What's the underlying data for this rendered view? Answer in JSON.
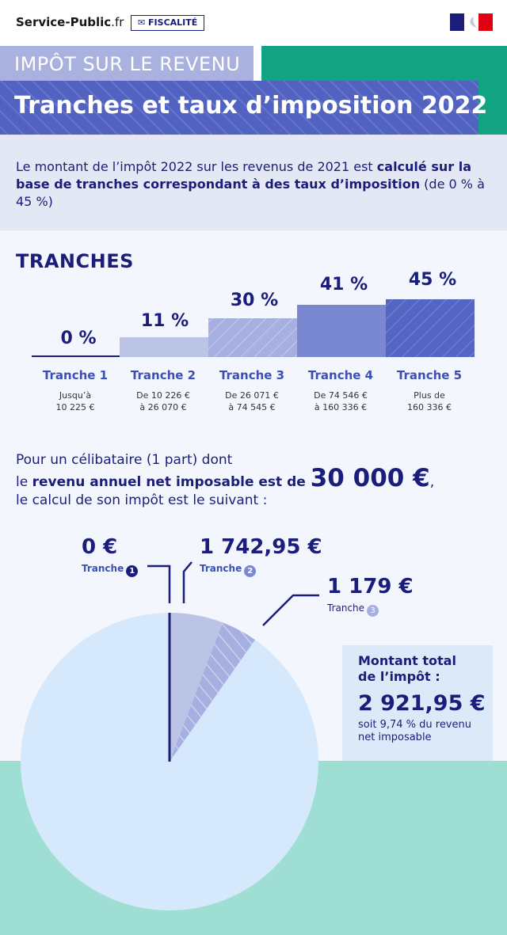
{
  "header": {
    "brand_main": "Service-Public",
    "brand_suffix": ".fr",
    "tag": "✉ FISCALITÉ",
    "kicker": "IMPÔT SUR LE REVENU",
    "title": "Tranches et taux d’imposition 2022"
  },
  "intro": {
    "part1": "Le montant de l’impôt 2022 sur les revenus de 2021 est ",
    "part_strong": "calculé sur la base de tranches correspondant à des taux d’imposition",
    "part2": " (de 0 % à 45 %)"
  },
  "tranches": {
    "section_title": "TRANCHES",
    "items": [
      {
        "rate": "0 %",
        "label": "Tranche 1",
        "range1": "Jusqu’à",
        "range2": "10 225 €"
      },
      {
        "rate": "11 %",
        "label": "Tranche 2",
        "range1": "De 10 226 €",
        "range2": "à 26 070 €"
      },
      {
        "rate": "30 %",
        "label": "Tranche 3",
        "range1": "De 26 071 €",
        "range2": "à 74 545 €"
      },
      {
        "rate": "41 %",
        "label": "Tranche 4",
        "range1": "De 74 546 €",
        "range2": "à 160 336 €"
      },
      {
        "rate": "45 %",
        "label": "Tranche 5",
        "range1": "Plus de",
        "range2": "160 336 €"
      }
    ]
  },
  "example": {
    "line1": "Pour un célibataire (1 part) dont",
    "line2_pre": "le ",
    "line2_strong": "revenu annuel net imposable est de ",
    "line2_big": "30 000 €",
    "line2_post": ",",
    "line3": "le calcul de son impôt est le suivant :"
  },
  "breakdown": {
    "items": [
      {
        "amount": "0 €",
        "label": "Tranche",
        "badge": "1"
      },
      {
        "amount": "1 742,95 €",
        "label": "Tranche",
        "badge": "2"
      },
      {
        "amount": "1 179 €",
        "label": "Tranche",
        "badge": "3"
      }
    ],
    "pie_fractions": [
      0.0,
      0.0581,
      0.0393
    ]
  },
  "total": {
    "label": "Montant total de l’impôt :",
    "value": "2 921,95 €",
    "note": "soit 9,74 % du revenu net imposable"
  },
  "colors": {
    "navy": "#1a1e7a",
    "blue": "#5262c0",
    "lavender": "#a9b2df",
    "green": "#12a383",
    "mint": "#9fded2",
    "pale": "#dce9f9"
  }
}
